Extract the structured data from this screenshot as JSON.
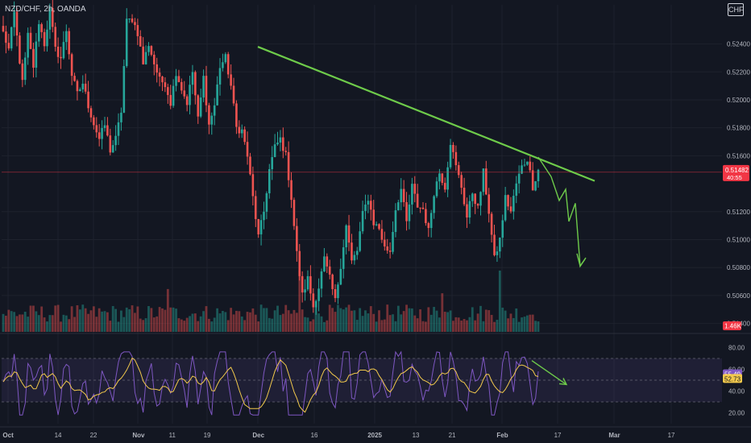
{
  "header": {
    "symbol": "NZD/CHF, 2h, OANDA",
    "currency": "CHF"
  },
  "colors": {
    "background": "#131722",
    "grid": "#1e222d",
    "bull": "#26a69a",
    "bear": "#ef5350",
    "trendline": "#6ecb4a",
    "rsi_line": "#7e57c2",
    "rsi_ma": "#f2c94c",
    "rsi_band": "#7e57c2",
    "price_label": "#f23645",
    "volume_label": "#f23645"
  },
  "chart_data": [
    {
      "type": "candlestick",
      "pane": "price",
      "symbol": "NZD/CHF",
      "interval": "2h",
      "y_ticks": [
        "0.52400",
        "0.52200",
        "0.52000",
        "0.51800",
        "0.51600",
        "0.51200",
        "0.51000",
        "0.50800",
        "0.50600",
        "0.50400"
      ],
      "ylim": [
        0.5034,
        0.5268
      ],
      "last_price": "0.51482",
      "countdown": "40:55",
      "trendline": {
        "from": [
          "Dec",
          0.5238
        ],
        "to": [
          "Feb 26",
          0.5142
        ]
      },
      "projection": [
        0.5159,
        0.5145,
        0.5128,
        0.5136,
        0.5113,
        0.5126,
        0.5081,
        0.5087
      ],
      "keypoints": [
        [
          0,
          0.5248
        ],
        [
          2,
          0.5236
        ],
        [
          4,
          0.5262
        ],
        [
          6,
          0.5228
        ],
        [
          7,
          0.5212
        ],
        [
          9,
          0.5246
        ],
        [
          11,
          0.5224
        ],
        [
          13,
          0.5256
        ],
        [
          15,
          0.524
        ],
        [
          17,
          0.5264
        ],
        [
          19,
          0.5236
        ],
        [
          21,
          0.523
        ],
        [
          23,
          0.525
        ],
        [
          25,
          0.5218
        ],
        [
          27,
          0.5204
        ],
        [
          29,
          0.5212
        ],
        [
          31,
          0.5196
        ],
        [
          33,
          0.5183
        ],
        [
          35,
          0.5172
        ],
        [
          37,
          0.5182
        ],
        [
          39,
          0.5164
        ],
        [
          41,
          0.5172
        ],
        [
          43,
          0.5192
        ],
        [
          45,
          0.5256
        ],
        [
          47,
          0.5258
        ],
        [
          49,
          0.5248
        ],
        [
          51,
          0.5226
        ],
        [
          53,
          0.524
        ],
        [
          55,
          0.5226
        ],
        [
          57,
          0.5214
        ],
        [
          59,
          0.5212
        ],
        [
          61,
          0.5198
        ],
        [
          63,
          0.522
        ],
        [
          65,
          0.5208
        ],
        [
          67,
          0.5198
        ],
        [
          69,
          0.522
        ],
        [
          71,
          0.5186
        ],
        [
          73,
          0.5216
        ],
        [
          75,
          0.5182
        ],
        [
          77,
          0.5196
        ],
        [
          79,
          0.5224
        ],
        [
          81,
          0.523
        ],
        [
          83,
          0.521
        ],
        [
          85,
          0.518
        ],
        [
          87,
          0.5178
        ],
        [
          89,
          0.516
        ],
        [
          91,
          0.513
        ],
        [
          93,
          0.5102
        ],
        [
          95,
          0.512
        ],
        [
          97,
          0.515
        ],
        [
          99,
          0.5166
        ],
        [
          101,
          0.5172
        ],
        [
          103,
          0.516
        ],
        [
          105,
          0.513
        ],
        [
          107,
          0.509
        ],
        [
          109,
          0.506
        ],
        [
          111,
          0.5072
        ],
        [
          113,
          0.5052
        ],
        [
          115,
          0.5066
        ],
        [
          117,
          0.5086
        ],
        [
          119,
          0.5072
        ],
        [
          121,
          0.5056
        ],
        [
          123,
          0.5082
        ],
        [
          125,
          0.511
        ],
        [
          127,
          0.5084
        ],
        [
          129,
          0.5092
        ],
        [
          131,
          0.5118
        ],
        [
          133,
          0.513
        ],
        [
          135,
          0.5112
        ],
        [
          137,
          0.5108
        ],
        [
          139,
          0.5094
        ],
        [
          141,
          0.5092
        ],
        [
          143,
          0.5122
        ],
        [
          145,
          0.5136
        ],
        [
          147,
          0.5112
        ],
        [
          149,
          0.5138
        ],
        [
          151,
          0.5124
        ],
        [
          153,
          0.5122
        ],
        [
          155,
          0.5106
        ],
        [
          157,
          0.5134
        ],
        [
          159,
          0.5148
        ],
        [
          161,
          0.5138
        ],
        [
          163,
          0.517
        ],
        [
          165,
          0.5152
        ],
        [
          167,
          0.5138
        ],
        [
          169,
          0.5116
        ],
        [
          171,
          0.5134
        ],
        [
          173,
          0.5122
        ],
        [
          175,
          0.5148
        ],
        [
          177,
          0.512
        ],
        [
          179,
          0.5086
        ],
        [
          181,
          0.51
        ],
        [
          183,
          0.513
        ],
        [
          185,
          0.512
        ],
        [
          187,
          0.514
        ],
        [
          189,
          0.5152
        ],
        [
          191,
          0.5158
        ],
        [
          193,
          0.5138
        ],
        [
          195,
          0.515
        ]
      ]
    },
    {
      "type": "bar",
      "pane": "volume",
      "last_volume": "1.46K"
    },
    {
      "type": "line",
      "pane": "rsi",
      "y_ticks": [
        "80.00",
        "60.00",
        "40.00",
        "20.00"
      ],
      "ylim": [
        10,
        90
      ],
      "bands": [
        70,
        30
      ],
      "midline": 50,
      "rsi_value": "55.49",
      "ma_value": "52.73",
      "projection": [
        [
          184,
          68
        ],
        [
          200,
          46
        ]
      ]
    }
  ],
  "x_axis": {
    "labels": [
      "Oct",
      "14",
      "22",
      "Nov",
      "11",
      "19",
      "Dec",
      "16",
      "2025",
      "13",
      "21",
      "Feb",
      "17",
      "Mar",
      "17"
    ]
  }
}
